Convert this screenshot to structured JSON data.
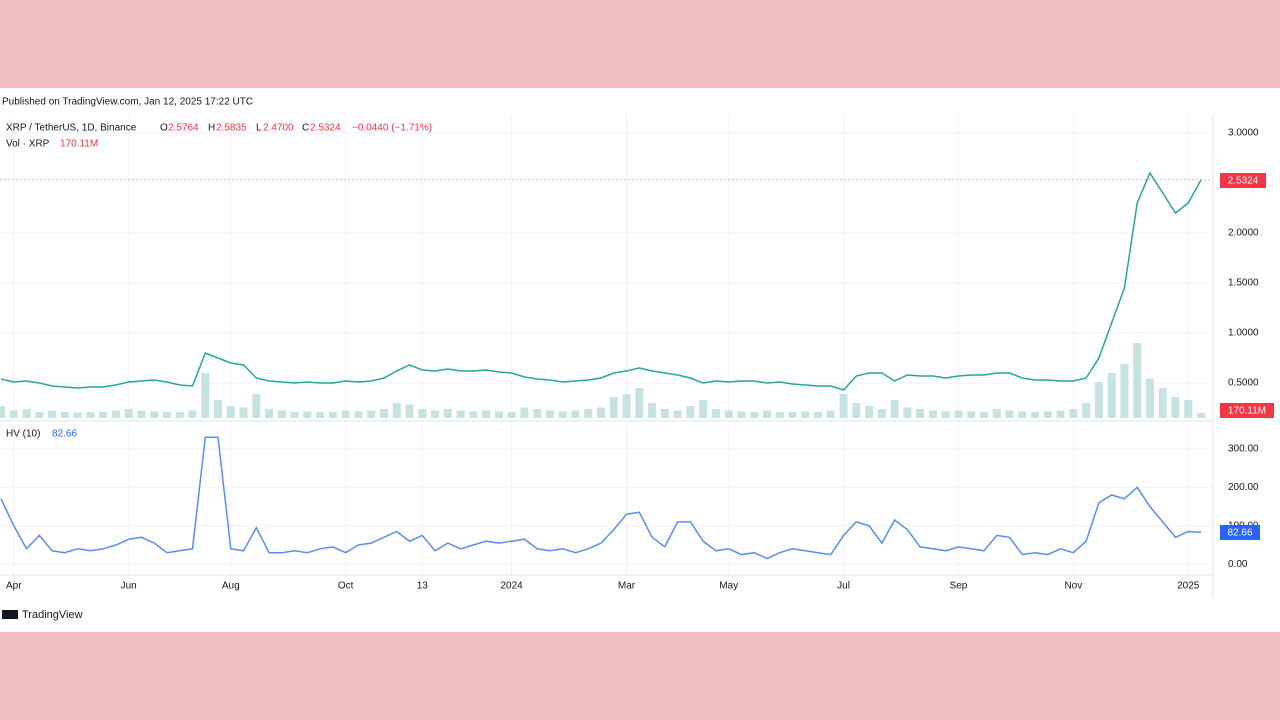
{
  "published": "Published on TradingView.com, Jan 12, 2025 17:22 UTC",
  "legend": {
    "o_label": "O",
    "o": "2.5764",
    "h_label": "H",
    "h": "2.5835",
    "l_label": "L",
    "l": "2.4700",
    "c_label": "C",
    "c": "2.5324",
    "change": "−0.0440 (−1.71%)",
    "volume": "170.11M",
    "price_tag": "2.5324",
    "hv": "82.66"
  },
  "footer": "TradingView",
  "chart_data": [
    {
      "type": "line",
      "categories": [
        null,
        "Apr",
        null,
        null,
        null,
        null,
        null,
        null,
        null,
        null,
        "Jun",
        null,
        null,
        null,
        null,
        null,
        null,
        null,
        "Aug",
        null,
        null,
        null,
        null,
        null,
        null,
        null,
        null,
        "Oct",
        null,
        null,
        null,
        null,
        null,
        "13",
        null,
        null,
        null,
        null,
        null,
        null,
        "2024",
        null,
        null,
        null,
        null,
        null,
        null,
        null,
        null,
        "Mar",
        null,
        null,
        null,
        null,
        null,
        null,
        null,
        "May",
        null,
        null,
        null,
        null,
        null,
        null,
        null,
        null,
        "Jul",
        null,
        null,
        null,
        null,
        null,
        null,
        null,
        null,
        "Sep",
        null,
        null,
        null,
        null,
        null,
        null,
        null,
        null,
        "Nov",
        null,
        null,
        null,
        null,
        null,
        null,
        null,
        null,
        "2025",
        null
      ],
      "series": [
        {
          "name": "XRP / TetherUS, 1D, Binance",
          "color": "#26a69a",
          "values": [
            0.54,
            0.51,
            0.52,
            0.5,
            0.47,
            0.46,
            0.45,
            0.46,
            0.46,
            0.48,
            0.51,
            0.52,
            0.53,
            0.51,
            0.48,
            0.47,
            0.8,
            0.75,
            0.7,
            0.68,
            0.55,
            0.52,
            0.51,
            0.5,
            0.51,
            0.5,
            0.5,
            0.52,
            0.51,
            0.52,
            0.55,
            0.62,
            0.68,
            0.63,
            0.62,
            0.64,
            0.62,
            0.62,
            0.63,
            0.61,
            0.6,
            0.56,
            0.54,
            0.53,
            0.51,
            0.52,
            0.53,
            0.55,
            0.6,
            0.62,
            0.65,
            0.62,
            0.6,
            0.58,
            0.55,
            0.5,
            0.52,
            0.51,
            0.52,
            0.52,
            0.5,
            0.51,
            0.49,
            0.48,
            0.47,
            0.47,
            0.43,
            0.57,
            0.6,
            0.6,
            0.52,
            0.58,
            0.57,
            0.57,
            0.55,
            0.57,
            0.58,
            0.58,
            0.6,
            0.6,
            0.55,
            0.53,
            0.53,
            0.52,
            0.52,
            0.55,
            0.75,
            1.1,
            1.45,
            2.3,
            2.6,
            2.4,
            2.2,
            2.3,
            2.5324
          ]
        },
        {
          "name": "Vol · XRP",
          "color": "#b9dcd7",
          "type": "bar",
          "values": [
            400,
            250,
            300,
            200,
            250,
            200,
            180,
            200,
            200,
            250,
            300,
            250,
            220,
            200,
            200,
            250,
            1500,
            600,
            400,
            350,
            800,
            300,
            250,
            200,
            220,
            200,
            200,
            250,
            220,
            250,
            300,
            500,
            450,
            300,
            250,
            300,
            250,
            220,
            250,
            220,
            200,
            350,
            300,
            250,
            220,
            250,
            300,
            350,
            700,
            800,
            1000,
            500,
            300,
            250,
            400,
            600,
            300,
            250,
            220,
            200,
            250,
            200,
            200,
            220,
            200,
            250,
            800,
            500,
            400,
            300,
            600,
            350,
            300,
            250,
            220,
            250,
            220,
            200,
            300,
            250,
            220,
            200,
            220,
            250,
            300,
            500,
            1200,
            1500,
            1800,
            2500,
            1300,
            1000,
            700,
            600,
            170.11
          ]
        }
      ],
      "ylim": [
        0.15,
        3.18
      ],
      "yticks": [
        {
          "value": 0.5,
          "label": "0.5000"
        },
        {
          "value": 1,
          "label": "1.0000"
        },
        {
          "value": 1.5,
          "label": "1.5000"
        },
        {
          "value": 2,
          "label": "2.0000"
        },
        {
          "value": 3,
          "label": "3.0000"
        }
      ],
      "reference_line": 2.5324,
      "reference_color": "#f23645",
      "grid": true
    },
    {
      "type": "line",
      "series": [
        {
          "name": "HV (10)",
          "color": "#5b8def",
          "values": [
            170,
            100,
            40,
            75,
            35,
            30,
            40,
            35,
            40,
            50,
            65,
            70,
            55,
            30,
            35,
            40,
            330,
            330,
            40,
            35,
            95,
            30,
            30,
            35,
            30,
            40,
            45,
            30,
            50,
            55,
            70,
            85,
            60,
            75,
            35,
            55,
            40,
            50,
            60,
            55,
            60,
            65,
            40,
            35,
            40,
            30,
            40,
            55,
            90,
            130,
            135,
            70,
            45,
            110,
            110,
            60,
            35,
            40,
            25,
            30,
            15,
            30,
            40,
            35,
            30,
            25,
            75,
            110,
            100,
            55,
            115,
            90,
            45,
            40,
            35,
            45,
            40,
            35,
            75,
            70,
            25,
            30,
            25,
            40,
            30,
            60,
            160,
            180,
            170,
            200,
            150,
            110,
            70,
            85,
            82.66
          ]
        }
      ],
      "ylim": [
        -28,
        362
      ],
      "yticks": [
        {
          "value": 0,
          "label": "0.00"
        },
        {
          "value": 100,
          "label": "100.00"
        },
        {
          "value": 200,
          "label": "200.00"
        },
        {
          "value": 300,
          "label": "300.00"
        }
      ],
      "grid": true
    }
  ]
}
